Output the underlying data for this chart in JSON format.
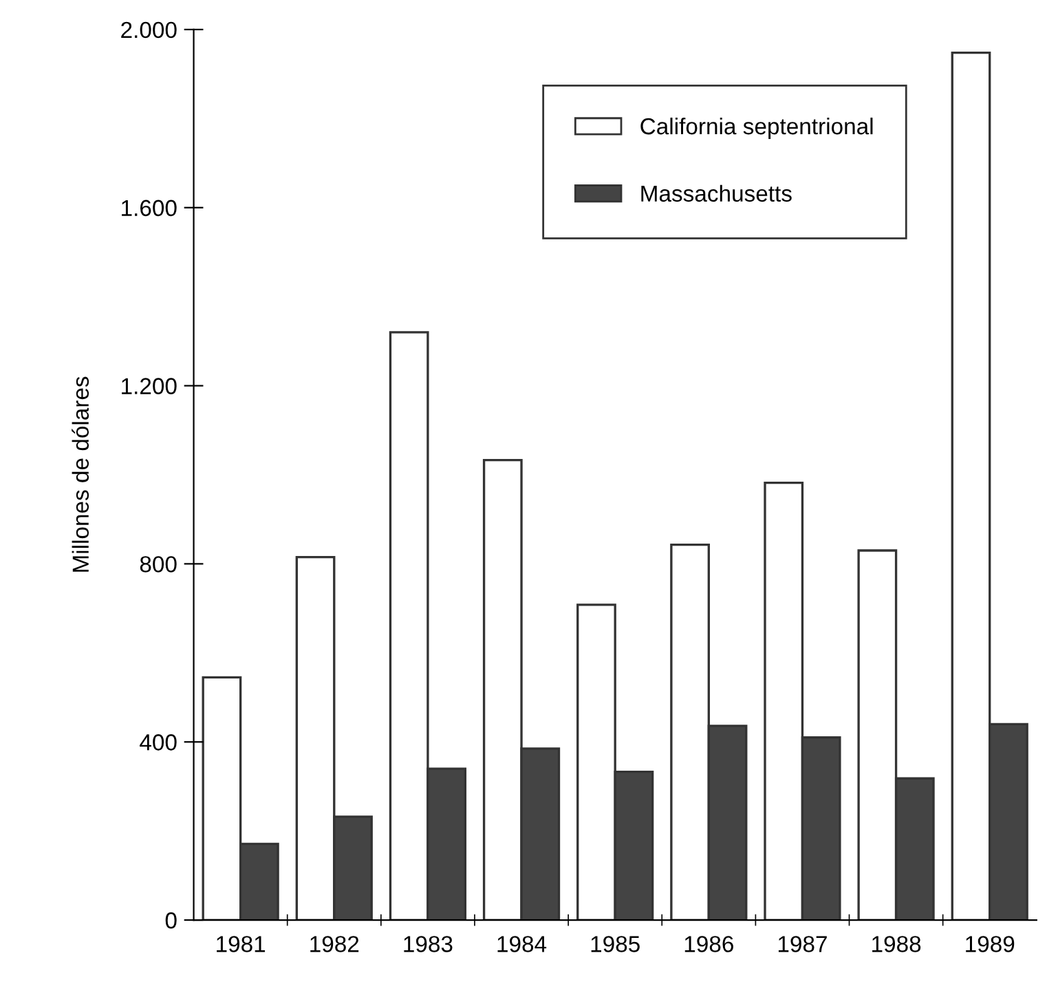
{
  "chart_data": {
    "type": "bar",
    "ylabel": "Millones de dólares",
    "categories": [
      "1981",
      "1982",
      "1983",
      "1984",
      "1985",
      "1986",
      "1987",
      "1988",
      "1989"
    ],
    "series": [
      {
        "name": "California septentrional",
        "color": "#ffffff",
        "values": [
          545,
          815,
          1320,
          1033,
          708,
          843,
          982,
          830,
          1948
        ]
      },
      {
        "name": "Massachusetts",
        "color": "#444444",
        "values": [
          171,
          232,
          340,
          385,
          333,
          436,
          410,
          318,
          440
        ]
      }
    ],
    "ylim": [
      0,
      2000
    ],
    "yticks": [
      0,
      400,
      800,
      {
        "value": 1200,
        "label": "1.200"
      },
      {
        "value": 1600,
        "label": "1.600"
      },
      {
        "value": 2000,
        "label": "2.000"
      }
    ],
    "grid": false,
    "legend": "top right"
  }
}
